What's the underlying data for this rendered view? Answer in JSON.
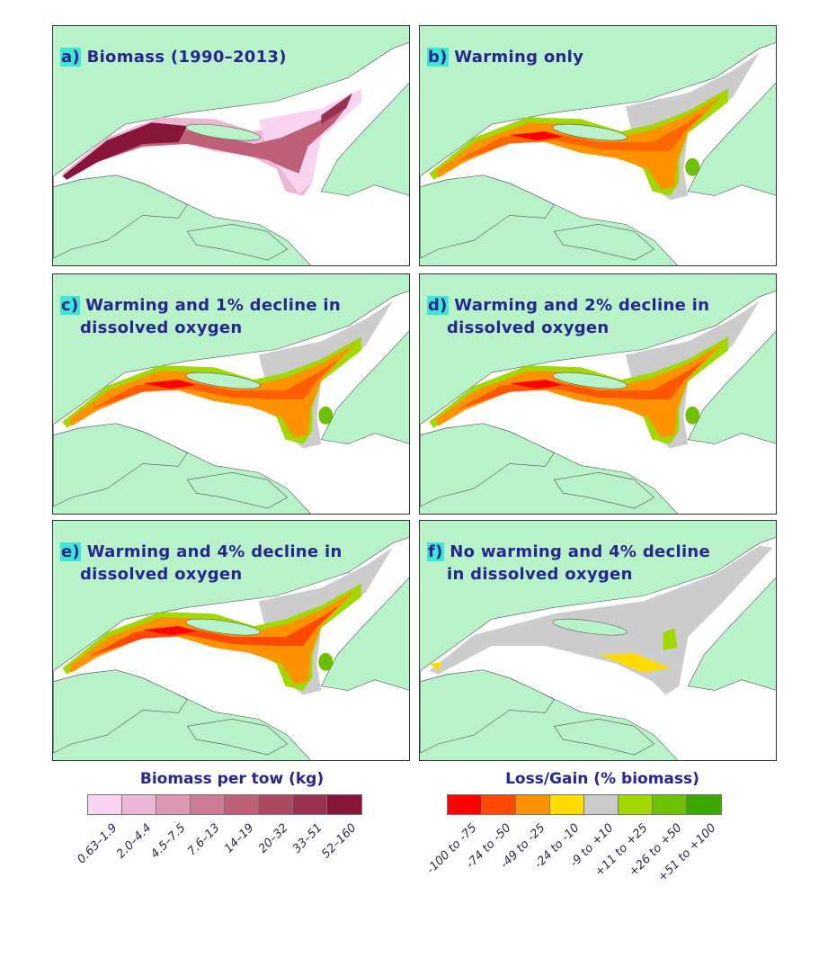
{
  "panels": [
    {
      "letter": "a)",
      "title": "Biomass (1990–2013)",
      "kind": "biomass"
    },
    {
      "letter": "b)",
      "title": "Warming only",
      "kind": "change",
      "level": 0
    },
    {
      "letter": "c)",
      "title": "Warming and 1% decline in",
      "title2": "dissolved oxygen",
      "kind": "change",
      "level": 1
    },
    {
      "letter": "d)",
      "title": "Warming and 2% decline in",
      "title2": "dissolved oxygen",
      "kind": "change",
      "level": 2
    },
    {
      "letter": "e)",
      "title": "Warming and 4% decline in",
      "title2": "dissolved oxygen",
      "kind": "change",
      "level": 4
    },
    {
      "letter": "f)",
      "title": "No warming and 4% decline",
      "title2": "in dissolved oxygen",
      "kind": "neutral"
    }
  ],
  "colors": {
    "land": "#b8f2c8",
    "water": "#ffffff",
    "label_highlight": "#3ee6d6",
    "title": "#262690"
  },
  "legend_biomass": {
    "title": "Biomass per tow (kg)",
    "classes": [
      {
        "label": "0.63–1.9",
        "color": "#f8d4f0"
      },
      {
        "label": "2.0–4.4",
        "color": "#ecb6d4"
      },
      {
        "label": "4.5–7.5",
        "color": "#dd98b2"
      },
      {
        "label": "7.6–13",
        "color": "#cd7b94"
      },
      {
        "label": "14–19",
        "color": "#bd6078"
      },
      {
        "label": "20–32",
        "color": "#ac4a64"
      },
      {
        "label": "33–51",
        "color": "#9a3150"
      },
      {
        "label": "52–160",
        "color": "#88143a"
      }
    ]
  },
  "legend_change": {
    "title": "Loss/Gain (% biomass)",
    "classes": [
      {
        "label": "-100 to -75",
        "color": "#ff0000"
      },
      {
        "label": "-74 to -50",
        "color": "#ff4800"
      },
      {
        "label": "-49 to -25",
        "color": "#ff9200"
      },
      {
        "label": "-24 to -10",
        "color": "#ffdc00"
      },
      {
        "label": "-9 to +10",
        "color": "#cccccc"
      },
      {
        "label": "+11 to +25",
        "color": "#a0d800"
      },
      {
        "label": "+26 to +50",
        "color": "#6cc000"
      },
      {
        "label": "+51 to +100",
        "color": "#3aa800"
      }
    ]
  }
}
